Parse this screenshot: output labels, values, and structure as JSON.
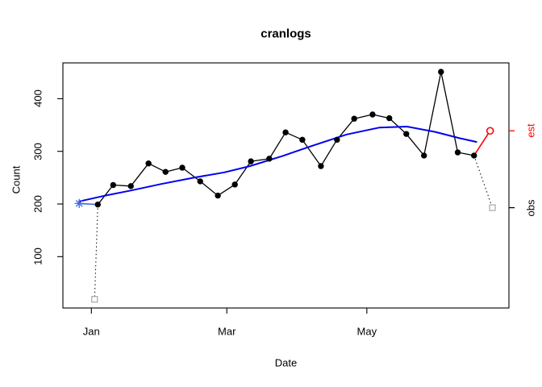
{
  "window": {
    "background": "#ffffff"
  },
  "chart_data": {
    "type": "line",
    "title": "cranlogs",
    "xlabel": "Date",
    "ylabel": "Count",
    "grid": false,
    "legend": "none",
    "xlim_days": [
      -12.4,
      181.9
    ],
    "ylim": [
      2.5,
      468
    ],
    "x_ticks": [
      {
        "day": 0,
        "label": "Jan"
      },
      {
        "day": 59,
        "label": "Mar"
      },
      {
        "day": 120,
        "label": "May"
      }
    ],
    "y_ticks": [
      100,
      200,
      300,
      400
    ],
    "right_axis_ticks": [
      {
        "label": "est",
        "value": 339,
        "color": "#ff0000"
      },
      {
        "label": "obs",
        "value": 193,
        "color": "#000000"
      }
    ],
    "colors": {
      "observed": "#000000",
      "smooth": "#0000ee",
      "start_marker": "#4169e1",
      "estimate": "#ff0000",
      "partial_obs": "#a0a0a0"
    },
    "series": [
      {
        "name": "observed-weekly",
        "style": "solid",
        "markers": "circle",
        "color": "#000000",
        "width": 1.3,
        "points": [
          [
            2.8,
            199
          ],
          [
            9.5,
            236
          ],
          [
            17.2,
            234
          ],
          [
            24.9,
            277
          ],
          [
            32.3,
            261
          ],
          [
            39.6,
            269
          ],
          [
            47.4,
            243
          ],
          [
            55.1,
            216
          ],
          [
            62.5,
            237
          ],
          [
            69.5,
            281
          ],
          [
            77.5,
            286
          ],
          [
            84.6,
            336
          ],
          [
            91.9,
            322
          ],
          [
            100,
            272
          ],
          [
            107,
            322
          ],
          [
            114.5,
            362
          ],
          [
            122.5,
            370
          ],
          [
            129.8,
            363
          ],
          [
            137.2,
            333
          ],
          [
            144.9,
            292
          ],
          [
            152.3,
            451
          ],
          [
            159.6,
            298
          ],
          [
            166.7,
            292
          ]
        ]
      },
      {
        "name": "loess-smooth",
        "style": "solid",
        "color": "#0000ee",
        "width": 2,
        "points": [
          [
            -5.3,
            205
          ],
          [
            6,
            216
          ],
          [
            16.5,
            225
          ],
          [
            30.5,
            238
          ],
          [
            44.6,
            250
          ],
          [
            57.9,
            260
          ],
          [
            69.1,
            272
          ],
          [
            83.2,
            291
          ],
          [
            97.2,
            312
          ],
          [
            111.2,
            332
          ],
          [
            125.3,
            345
          ],
          [
            137.5,
            347
          ],
          [
            149.8,
            337
          ],
          [
            160.4,
            325
          ],
          [
            167.7,
            318
          ]
        ]
      },
      {
        "name": "smooth-start-link",
        "style": "solid",
        "color": "#4169e1",
        "width": 1.6,
        "points": [
          [
            -5.3,
            201
          ],
          [
            2.8,
            199
          ]
        ]
      },
      {
        "name": "partial-week-left-link",
        "style": "dotted",
        "color": "#000000",
        "width": 1,
        "points": [
          [
            2.8,
            199
          ],
          [
            1.4,
            19
          ]
        ]
      },
      {
        "name": "partial-week-right-link",
        "style": "dotted",
        "color": "#000000",
        "width": 1,
        "points": [
          [
            166.7,
            292
          ],
          [
            174.7,
            193
          ]
        ]
      },
      {
        "name": "estimate-link",
        "style": "solid",
        "color": "#ff0000",
        "width": 1.6,
        "points": [
          [
            166.7,
            292
          ],
          [
            173.7,
            339
          ]
        ]
      }
    ],
    "markers": [
      {
        "shape": "asterisk",
        "name": "forecast-start-marker",
        "day": -5.3,
        "value": 201,
        "color": "#4169e1"
      },
      {
        "shape": "open-square",
        "name": "partial-obs-left-marker",
        "day": 1.4,
        "value": 19,
        "color": "#a0a0a0"
      },
      {
        "shape": "open-square",
        "name": "partial-obs-right-marker",
        "day": 174.7,
        "value": 193,
        "color": "#a0a0a0"
      },
      {
        "shape": "open-circle",
        "name": "estimate-marker",
        "day": 173.7,
        "value": 339,
        "color": "#ff0000"
      }
    ]
  }
}
